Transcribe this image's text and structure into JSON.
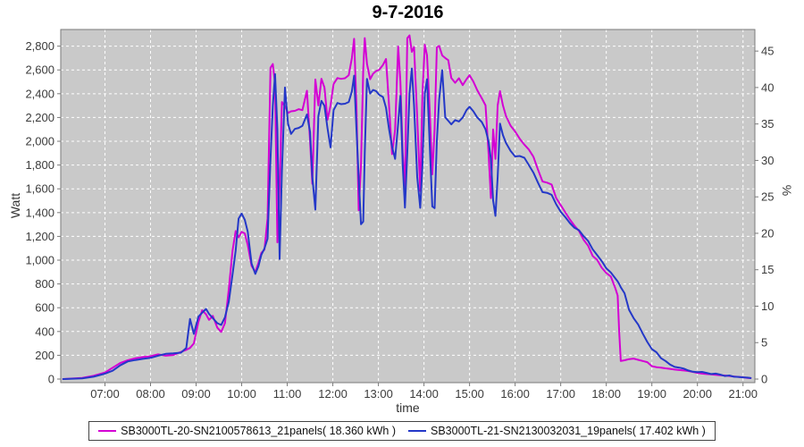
{
  "chart_data": {
    "type": "line",
    "title": "9-7-2016",
    "xlabel": "time",
    "ylabel_left": "Watt",
    "ylabel_right": "%",
    "plot_bg": "#c9c9c9",
    "grid_color": "#ffffff",
    "axis_color": "#7a7a7a",
    "tick_text_color": "#3b3b3b",
    "x_range": [
      6.03,
      21.26
    ],
    "x_ticks": [
      {
        "v": 7,
        "label": "07:00"
      },
      {
        "v": 8,
        "label": "08:00"
      },
      {
        "v": 9,
        "label": "09:00"
      },
      {
        "v": 10,
        "label": "10:00"
      },
      {
        "v": 11,
        "label": "11:00"
      },
      {
        "v": 12,
        "label": "12:00"
      },
      {
        "v": 13,
        "label": "13:00"
      },
      {
        "v": 14,
        "label": "14:00"
      },
      {
        "v": 15,
        "label": "15:00"
      },
      {
        "v": 16,
        "label": "16:00"
      },
      {
        "v": 17,
        "label": "17:00"
      },
      {
        "v": 18,
        "label": "18:00"
      },
      {
        "v": 19,
        "label": "19:00"
      },
      {
        "v": 20,
        "label": "20:00"
      },
      {
        "v": 21,
        "label": "21:00"
      }
    ],
    "y_left": {
      "min": -30,
      "max": 2940,
      "ticks": [
        0,
        200,
        400,
        600,
        800,
        1000,
        1200,
        1400,
        1600,
        1800,
        2000,
        2200,
        2400,
        2600,
        2800
      ]
    },
    "y_right": {
      "ticks": [
        0,
        5,
        10,
        15,
        20,
        25,
        30,
        35,
        40,
        45
      ],
      "watt_per_unit": 61.3
    },
    "x": [
      6.083,
      6.5,
      6.75,
      7,
      7.167,
      7.333,
      7.5,
      7.667,
      7.833,
      8,
      8.167,
      8.333,
      8.5,
      8.667,
      8.783,
      8.867,
      8.95,
      9.05,
      9.133,
      9.217,
      9.283,
      9.367,
      9.467,
      9.55,
      9.633,
      9.717,
      9.8,
      9.867,
      9.933,
      10,
      10.067,
      10.133,
      10.217,
      10.3,
      10.367,
      10.433,
      10.5,
      10.567,
      10.633,
      10.683,
      10.733,
      10.783,
      10.833,
      10.883,
      10.95,
      11.017,
      11.083,
      11.167,
      11.25,
      11.333,
      11.433,
      11.5,
      11.55,
      11.617,
      11.683,
      11.75,
      11.817,
      11.883,
      11.95,
      12.017,
      12.1,
      12.183,
      12.267,
      12.35,
      12.417,
      12.467,
      12.517,
      12.567,
      12.617,
      12.667,
      12.7,
      12.75,
      12.817,
      12.883,
      12.95,
      13.017,
      13.1,
      13.167,
      13.233,
      13.3,
      13.367,
      13.433,
      13.483,
      13.533,
      13.583,
      13.633,
      13.683,
      13.733,
      13.783,
      13.85,
      13.917,
      13.967,
      14.017,
      14.067,
      14.133,
      14.183,
      14.233,
      14.283,
      14.333,
      14.4,
      14.467,
      14.533,
      14.6,
      14.683,
      14.767,
      14.85,
      14.933,
      15,
      15.083,
      15.167,
      15.267,
      15.35,
      15.417,
      15.467,
      15.517,
      15.567,
      15.617,
      15.667,
      15.733,
      15.8,
      15.9,
      16,
      16.1,
      16.2,
      16.3,
      16.4,
      16.5,
      16.6,
      16.7,
      16.8,
      16.9,
      17,
      17.1,
      17.2,
      17.3,
      17.4,
      17.5,
      17.6,
      17.7,
      17.8,
      17.9,
      18,
      18.1,
      18.2,
      18.25,
      18.283,
      18.317,
      18.4,
      18.5,
      18.6,
      18.7,
      18.8,
      18.9,
      19,
      19.1,
      19.2,
      19.3,
      19.4,
      19.5,
      19.6,
      19.7,
      19.8,
      19.9,
      20,
      20.1,
      20.2,
      20.3,
      20.4,
      20.5,
      20.6,
      20.7,
      20.8,
      20.9,
      21,
      21.1,
      21.167
    ],
    "series": [
      {
        "name": "SB3000TL-20-SN2100578613_21panels( 18.360 kWh )",
        "color": "#d400d4",
        "values": [
          0,
          10,
          28,
          55,
          95,
          135,
          158,
          175,
          185,
          192,
          208,
          196,
          202,
          228,
          246,
          262,
          300,
          480,
          578,
          545,
          498,
          532,
          432,
          396,
          470,
          755,
          1080,
          1245,
          1192,
          1238,
          1225,
          1128,
          952,
          900,
          978,
          1062,
          1088,
          1352,
          2618,
          2650,
          2480,
          1150,
          1625,
          2330,
          2295,
          2238,
          2252,
          2256,
          2270,
          2262,
          2425,
          2000,
          1642,
          2520,
          2302,
          2526,
          2452,
          2180,
          2300,
          2482,
          2532,
          2525,
          2530,
          2556,
          2700,
          2862,
          2300,
          1420,
          1802,
          2600,
          2868,
          2652,
          2522,
          2568,
          2590,
          2602,
          2642,
          2692,
          2300,
          1892,
          2100,
          2798,
          2502,
          1902,
          1600,
          2866,
          2890,
          2752,
          2792,
          2200,
          1582,
          2400,
          2812,
          2722,
          2200,
          1722,
          2102,
          2790,
          2802,
          2722,
          2700,
          2682,
          2532,
          2492,
          2530,
          2472,
          2522,
          2556,
          2502,
          2432,
          2362,
          2302,
          1900,
          1522,
          2100,
          1852,
          2302,
          2422,
          2302,
          2212,
          2132,
          2082,
          2022,
          1972,
          1930,
          1870,
          1762,
          1662,
          1652,
          1636,
          1522,
          1462,
          1402,
          1342,
          1290,
          1246,
          1172,
          1122,
          1036,
          1002,
          936,
          892,
          862,
          762,
          702,
          400,
          152,
          158,
          168,
          172,
          162,
          152,
          142,
          108,
          100,
          96,
          90,
          86,
          80,
          76,
          72,
          68,
          60,
          52,
          46,
          42,
          40,
          36,
          32,
          30,
          26,
          22,
          18,
          15,
          10,
          8
        ]
      },
      {
        "name": "SB3000TL-21-SN2130032031_19panels( 17.402 kWh )",
        "color": "#2438c8",
        "values": [
          0,
          5,
          20,
          45,
          70,
          115,
          148,
          160,
          170,
          178,
          196,
          212,
          216,
          222,
          262,
          505,
          380,
          525,
          558,
          590,
          548,
          512,
          470,
          455,
          520,
          650,
          880,
          1080,
          1350,
          1392,
          1340,
          1240,
          972,
          884,
          948,
          1046,
          1098,
          1180,
          1850,
          2300,
          2565,
          2100,
          1010,
          1755,
          2452,
          2148,
          2062,
          2104,
          2112,
          2130,
          2226,
          2078,
          1700,
          1425,
          2212,
          2340,
          2298,
          2110,
          1948,
          2262,
          2322,
          2312,
          2316,
          2330,
          2420,
          2552,
          2102,
          1700,
          1302,
          1325,
          1900,
          2525,
          2402,
          2432,
          2422,
          2390,
          2372,
          2282,
          2102,
          1952,
          1852,
          2150,
          2382,
          1800,
          1442,
          1900,
          2400,
          2612,
          2300,
          1702,
          1440,
          1802,
          2400,
          2522,
          1902,
          1452,
          1438,
          2002,
          2352,
          2598,
          2202,
          2172,
          2142,
          2178,
          2166,
          2200,
          2262,
          2290,
          2252,
          2202,
          2162,
          2100,
          2000,
          1850,
          1502,
          1372,
          1700,
          2148,
          2052,
          1986,
          1920,
          1872,
          1876,
          1862,
          1800,
          1736,
          1652,
          1572,
          1566,
          1550,
          1470,
          1406,
          1362,
          1312,
          1272,
          1252,
          1202,
          1162,
          1092,
          1042,
          992,
          932,
          896,
          846,
          822,
          800,
          772,
          722,
          582,
          512,
          458,
          382,
          312,
          252,
          226,
          176,
          152,
          122,
          102,
          96,
          88,
          72,
          62,
          58,
          60,
          52,
          42,
          46,
          38,
          26,
          30,
          20,
          18,
          14,
          12,
          8
        ]
      }
    ]
  }
}
